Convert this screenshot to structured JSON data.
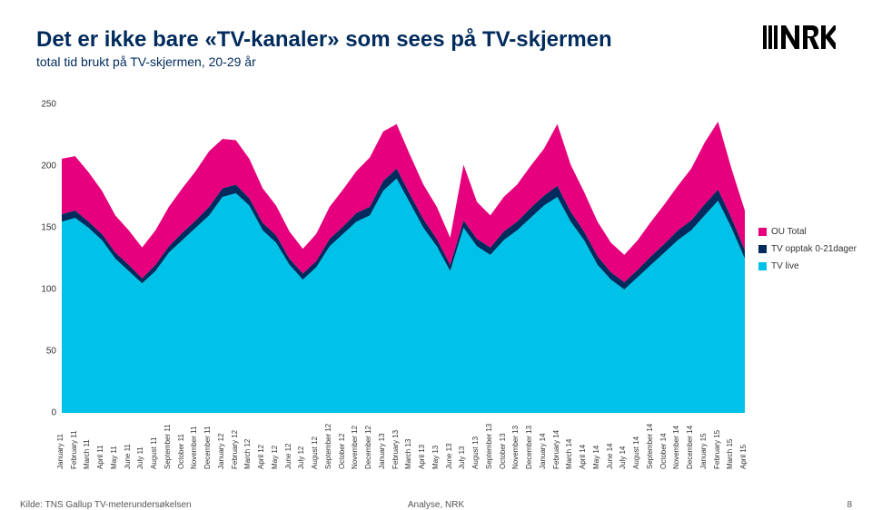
{
  "title": "Det er ikke bare «TV-kanaler» som sees på TV-skjermen",
  "subtitle": "total tid brukt på TV-skjermen, 20-29 år",
  "footer_source": "Kilde: TNS Gallup TV-meterundersøkelsen",
  "footer_mid": "Analyse, NRK",
  "footer_page": "8",
  "legend": [
    {
      "label": "OU Total",
      "color": "#e6007e"
    },
    {
      "label": "TV opptak 0-21dager",
      "color": "#002b5c"
    },
    {
      "label": "TV live",
      "color": "#00c2e8"
    }
  ],
  "chart": {
    "type": "area",
    "ylim": [
      0,
      250
    ],
    "ytick_step": 50,
    "yticks": [
      0,
      50,
      100,
      150,
      200,
      250
    ],
    "background_color": "#ffffff",
    "label_fontsize": 10,
    "xlabel_fontsize": 8,
    "categories": [
      "January 11",
      "February 11",
      "March 11",
      "April 11",
      "May 11",
      "June 11",
      "July 11",
      "August 11",
      "September 11",
      "October 11",
      "November 11",
      "December 11",
      "January 12",
      "February 12",
      "March 12",
      "April 12",
      "May 12",
      "June 12",
      "July 12",
      "August 12",
      "September 12",
      "October 12",
      "November 12",
      "December 12",
      "January 13",
      "February 13",
      "March 13",
      "April 13",
      "May 13",
      "June 13",
      "July 13",
      "August 13",
      "September 13",
      "October 13",
      "November 13",
      "December 13",
      "January 14",
      "February 14",
      "March 14",
      "April 14",
      "May 14",
      "June 14",
      "July 14",
      "August 14",
      "September 14",
      "October 14",
      "November 14",
      "December 14",
      "January 15",
      "February 15",
      "March 15",
      "April 15"
    ],
    "series": [
      {
        "name": "TV live",
        "color": "#00c2e8",
        "values": [
          155,
          158,
          150,
          140,
          125,
          115,
          105,
          115,
          130,
          140,
          150,
          160,
          175,
          178,
          168,
          148,
          138,
          120,
          108,
          118,
          135,
          145,
          155,
          160,
          180,
          190,
          170,
          150,
          135,
          115,
          150,
          135,
          128,
          140,
          148,
          158,
          168,
          175,
          155,
          140,
          120,
          108,
          100,
          110,
          120,
          130,
          140,
          148,
          160,
          172,
          150,
          125
        ]
      },
      {
        "name": "TV opptak 0-21dager",
        "color": "#002b5c",
        "values": [
          6,
          6,
          5,
          5,
          5,
          5,
          4,
          5,
          5,
          6,
          6,
          7,
          7,
          7,
          6,
          6,
          6,
          5,
          5,
          5,
          6,
          6,
          7,
          7,
          8,
          8,
          7,
          7,
          6,
          5,
          6,
          6,
          6,
          7,
          7,
          8,
          8,
          9,
          8,
          7,
          7,
          6,
          6,
          6,
          7,
          7,
          8,
          8,
          9,
          9,
          8,
          7
        ]
      },
      {
        "name": "OU Total",
        "color": "#e6007e",
        "values": [
          45,
          44,
          40,
          35,
          30,
          28,
          25,
          28,
          32,
          36,
          40,
          45,
          40,
          36,
          32,
          28,
          24,
          22,
          20,
          22,
          26,
          30,
          34,
          40,
          40,
          36,
          32,
          28,
          26,
          22,
          45,
          30,
          26,
          28,
          30,
          34,
          38,
          50,
          38,
          32,
          28,
          24,
          22,
          24,
          28,
          32,
          36,
          42,
          50,
          55,
          40,
          32
        ]
      }
    ]
  }
}
